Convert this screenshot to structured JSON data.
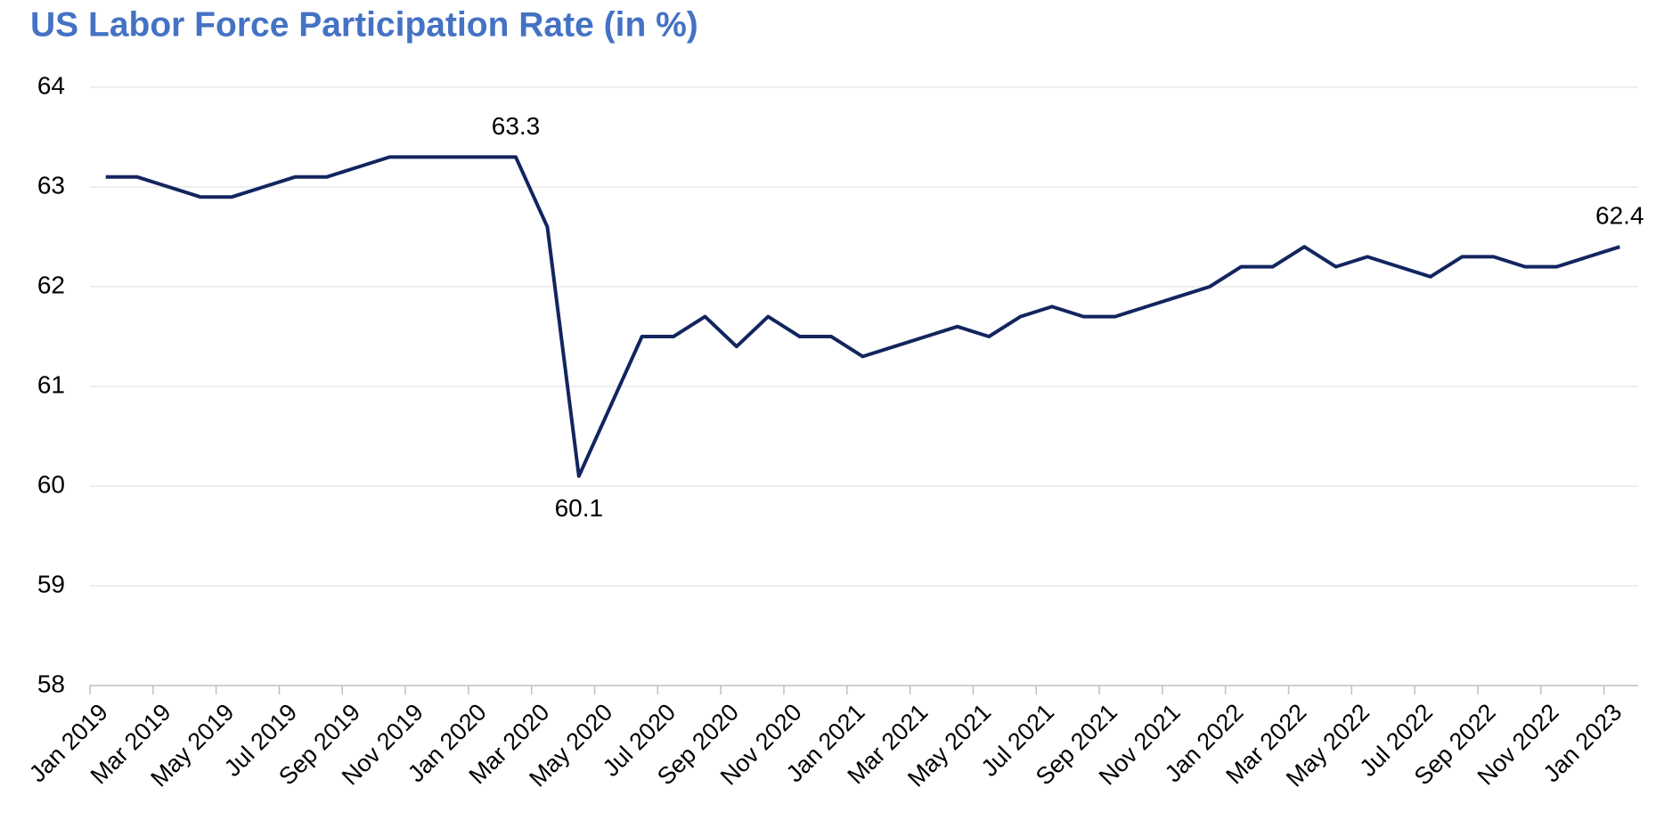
{
  "chart_data": {
    "type": "line",
    "title": "US Labor Force Participation Rate (in %)",
    "categories": [
      "Jan 2019",
      null,
      "Mar 2019",
      null,
      "May 2019",
      null,
      "Jul 2019",
      null,
      "Sep 2019",
      null,
      "Nov 2019",
      null,
      "Jan 2020",
      null,
      "Mar 2020",
      null,
      "May 2020",
      null,
      "Jul 2020",
      null,
      "Sep 2020",
      null,
      "Nov 2020",
      null,
      "Jan 2021",
      null,
      "Mar 2021",
      null,
      "May 2021",
      null,
      "Jul 2021",
      null,
      "Sep 2021",
      null,
      "Nov 2021",
      null,
      "Jan 2022",
      null,
      "Mar 2022",
      null,
      "May 2022",
      null,
      "Jul 2022",
      null,
      "Sep 2022",
      null,
      "Nov 2022",
      null,
      "Jan 2023"
    ],
    "series": [
      {
        "name": "Labor Force Participation Rate",
        "color": "#13255f",
        "values": [
          63.1,
          63.1,
          63.0,
          62.9,
          62.9,
          63.0,
          63.1,
          63.1,
          63.2,
          63.3,
          63.3,
          63.3,
          63.3,
          63.3,
          62.6,
          60.1,
          60.8,
          61.5,
          61.5,
          61.7,
          61.4,
          61.7,
          61.5,
          61.5,
          61.3,
          61.4,
          61.5,
          61.6,
          61.5,
          61.7,
          61.8,
          61.7,
          61.7,
          61.8,
          61.9,
          62.0,
          62.2,
          62.2,
          62.4,
          62.2,
          62.3,
          62.2,
          62.1,
          62.3,
          62.3,
          62.2,
          62.2,
          62.3,
          62.4
        ],
        "value_labels": [
          null,
          null,
          null,
          null,
          null,
          null,
          null,
          null,
          null,
          null,
          null,
          null,
          null,
          "63.3",
          null,
          "60.1",
          null,
          null,
          null,
          null,
          null,
          null,
          null,
          null,
          null,
          null,
          null,
          null,
          null,
          null,
          null,
          null,
          null,
          null,
          null,
          null,
          null,
          null,
          null,
          null,
          null,
          null,
          null,
          null,
          null,
          null,
          null,
          null,
          "62.4"
        ]
      }
    ],
    "ylim": [
      58,
      64
    ],
    "yticks": [
      58,
      59,
      60,
      61,
      62,
      63,
      64
    ],
    "grid": true,
    "title_color": "#4472c4"
  }
}
